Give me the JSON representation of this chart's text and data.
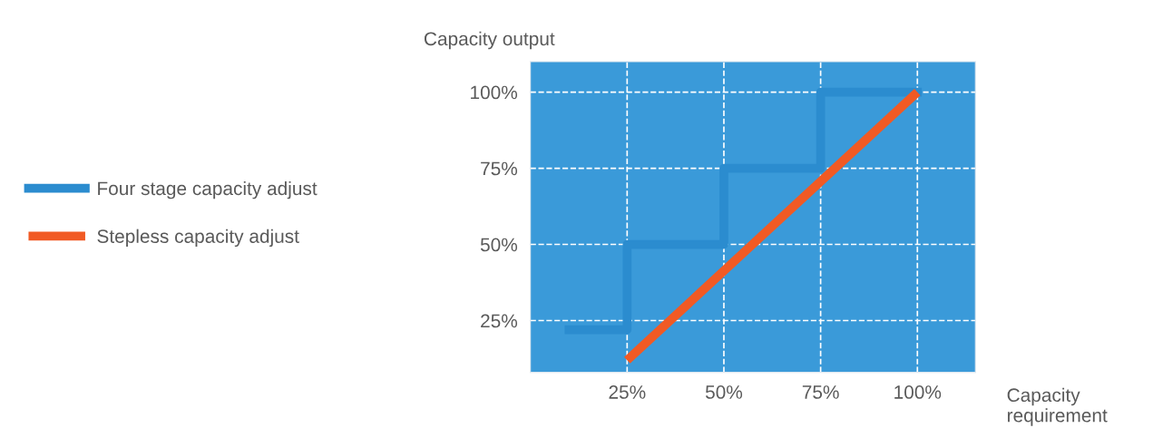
{
  "chart_data": {
    "type": "line",
    "xlabel": "Capacity requirement",
    "ylabel": "Capacity output",
    "series": [
      {
        "name": "Four stage capacity adjust",
        "type": "step",
        "color": "#2b8ccf",
        "x": [
          10,
          25,
          50,
          75,
          100
        ],
        "values": [
          22,
          50,
          75,
          100,
          100
        ]
      },
      {
        "name": "Stepless capacity adjust",
        "color": "#f15a24",
        "x": [
          25,
          100
        ],
        "values": [
          12,
          100
        ]
      }
    ],
    "xlim": [
      0,
      115
    ],
    "ylim": [
      8,
      110
    ],
    "xticks": [
      {
        "value": 25,
        "label": "25%"
      },
      {
        "value": 50,
        "label": "50%"
      },
      {
        "value": 75,
        "label": "75%"
      },
      {
        "value": 100,
        "label": "100%"
      }
    ],
    "yticks": [
      {
        "value": 25,
        "label": "25%"
      },
      {
        "value": 50,
        "label": "50%"
      },
      {
        "value": 75,
        "label": "75%"
      },
      {
        "value": 100,
        "label": "100%"
      }
    ],
    "grid": true,
    "legend": "left",
    "line_style": "solid"
  }
}
